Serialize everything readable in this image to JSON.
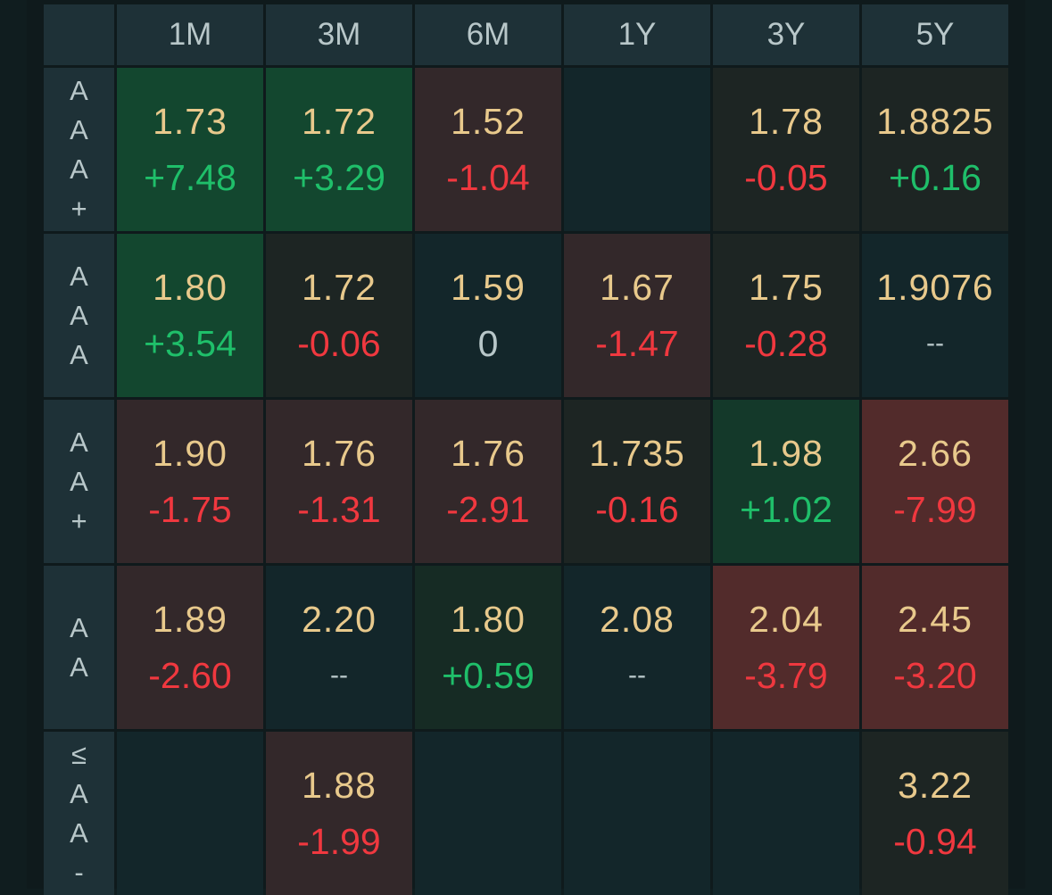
{
  "headers": [
    "1M",
    "3M",
    "6M",
    "1Y",
    "3Y",
    "5Y"
  ],
  "rows": [
    {
      "label_chars": [
        "A",
        "A",
        "A",
        "+"
      ],
      "cells": [
        {
          "value": "1.73",
          "change": "+7.48",
          "tone": "pos",
          "bg": "strong-green"
        },
        {
          "value": "1.72",
          "change": "+3.29",
          "tone": "pos",
          "bg": "strong-green"
        },
        {
          "value": "1.52",
          "change": "-1.04",
          "tone": "neg",
          "bg": "red"
        },
        {
          "value": "",
          "change": "",
          "tone": "flat",
          "bg": "neutral"
        },
        {
          "value": "1.78",
          "change": "-0.05",
          "tone": "neg",
          "bg": "dark-red"
        },
        {
          "value": "1.8825",
          "change": "+0.16",
          "tone": "pos",
          "bg": "dark-red"
        }
      ]
    },
    {
      "label_chars": [
        "A",
        "A",
        "A"
      ],
      "cells": [
        {
          "value": "1.80",
          "change": "+3.54",
          "tone": "pos",
          "bg": "strong-green"
        },
        {
          "value": "1.72",
          "change": "-0.06",
          "tone": "neg",
          "bg": "dark-red"
        },
        {
          "value": "1.59",
          "change": "0",
          "tone": "flat",
          "bg": "neutral"
        },
        {
          "value": "1.67",
          "change": "-1.47",
          "tone": "neg",
          "bg": "red"
        },
        {
          "value": "1.75",
          "change": "-0.28",
          "tone": "neg",
          "bg": "dark-red"
        },
        {
          "value": "1.9076",
          "change": "--",
          "tone": "flat",
          "bg": "neutral"
        }
      ]
    },
    {
      "label_chars": [
        "A",
        "A",
        "+"
      ],
      "cells": [
        {
          "value": "1.90",
          "change": "-1.75",
          "tone": "neg",
          "bg": "red"
        },
        {
          "value": "1.76",
          "change": "-1.31",
          "tone": "neg",
          "bg": "red"
        },
        {
          "value": "1.76",
          "change": "-2.91",
          "tone": "neg",
          "bg": "red"
        },
        {
          "value": "1.735",
          "change": "-0.16",
          "tone": "neg",
          "bg": "dark-red"
        },
        {
          "value": "1.98",
          "change": "+1.02",
          "tone": "pos",
          "bg": "green"
        },
        {
          "value": "2.66",
          "change": "-7.99",
          "tone": "neg",
          "bg": "strong-red"
        }
      ]
    },
    {
      "label_chars": [
        "A",
        "A"
      ],
      "cells": [
        {
          "value": "1.89",
          "change": "-2.60",
          "tone": "neg",
          "bg": "red"
        },
        {
          "value": "2.20",
          "change": "--",
          "tone": "flat",
          "bg": "neutral"
        },
        {
          "value": "1.80",
          "change": "+0.59",
          "tone": "pos",
          "bg": "dark-green"
        },
        {
          "value": "2.08",
          "change": "--",
          "tone": "flat",
          "bg": "neutral"
        },
        {
          "value": "2.04",
          "change": "-3.79",
          "tone": "neg",
          "bg": "strong-red"
        },
        {
          "value": "2.45",
          "change": "-3.20",
          "tone": "neg",
          "bg": "strong-red"
        }
      ]
    },
    {
      "label_chars": [
        "≤",
        "A",
        "A",
        "-"
      ],
      "cells": [
        {
          "value": "",
          "change": "",
          "tone": "flat",
          "bg": "neutral"
        },
        {
          "value": "1.88",
          "change": "-1.99",
          "tone": "neg",
          "bg": "red"
        },
        {
          "value": "",
          "change": "",
          "tone": "flat",
          "bg": "neutral"
        },
        {
          "value": "",
          "change": "",
          "tone": "flat",
          "bg": "neutral"
        },
        {
          "value": "",
          "change": "",
          "tone": "flat",
          "bg": "neutral"
        },
        {
          "value": "3.22",
          "change": "-0.94",
          "tone": "neg",
          "bg": "dark-red"
        }
      ]
    }
  ],
  "colors": {
    "value_text": "#e8c98c",
    "positive": "#1fbf6a",
    "negative": "#f0383f",
    "flat": "#b8c7c9",
    "header_bg": "#1e3137"
  }
}
